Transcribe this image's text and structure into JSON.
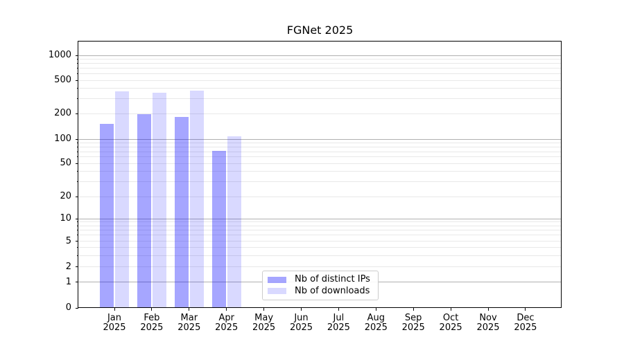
{
  "chart_data": {
    "type": "bar",
    "title": "FGNet 2025",
    "yscale": "symlog",
    "grid": true,
    "categories": [
      "Jan",
      "Feb",
      "Mar",
      "Apr",
      "May",
      "Jun",
      "Jul",
      "Aug",
      "Sep",
      "Oct",
      "Nov",
      "Dec"
    ],
    "category_year": "2025",
    "series": [
      {
        "name": "Nb of distinct IPs",
        "color": "rgba(0,0,255,0.35)",
        "values": [
          152,
          195,
          183,
          71,
          null,
          null,
          null,
          null,
          null,
          null,
          null,
          null
        ]
      },
      {
        "name": "Nb of downloads",
        "color": "rgba(0,0,255,0.15)",
        "values": [
          367,
          356,
          374,
          108,
          null,
          null,
          null,
          null,
          null,
          null,
          null,
          null
        ]
      }
    ],
    "yticks": [
      0,
      1,
      2,
      5,
      10,
      20,
      50,
      100,
      200,
      500,
      1000
    ],
    "ylim": [
      0,
      1460
    ],
    "legend_position": "inside-lower-center",
    "colors": {
      "grid_major": "#b0b0b0",
      "grid_minor": "#e8e8e8",
      "spine": "#000000",
      "text": "#000000",
      "background": "#ffffff"
    }
  }
}
